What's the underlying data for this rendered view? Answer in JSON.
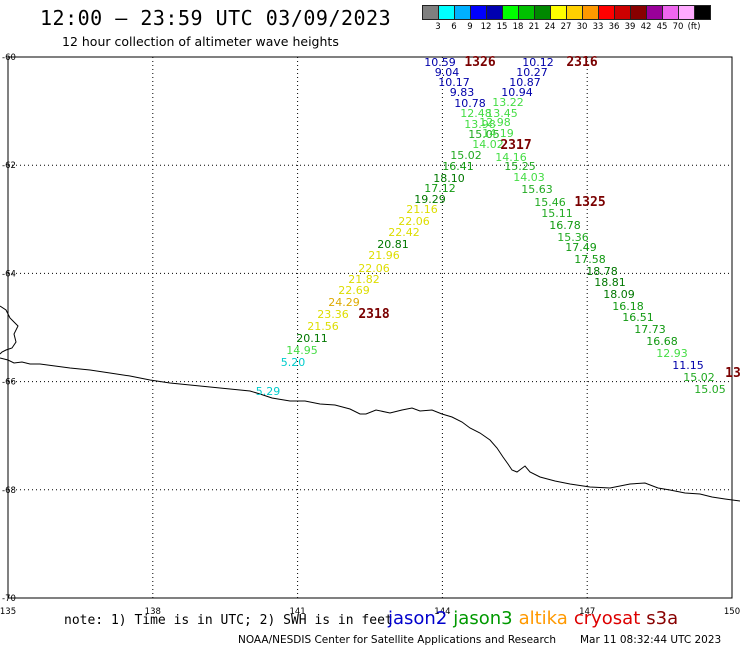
{
  "header": {
    "title": "12:00 – 23:59 UTC 03/09/2023",
    "subtitle": "12 hour collection of altimeter wave heights"
  },
  "color_scale": {
    "unit": "(ft)",
    "colors": [
      "#7f7f7f",
      "#00ffff",
      "#00b0ff",
      "#0000ff",
      "#0000b0",
      "#00ff00",
      "#00c000",
      "#008800",
      "#ffff00",
      "#ffd000",
      "#ff9900",
      "#ff0000",
      "#cc0000",
      "#880000",
      "#990099",
      "#ee66ee",
      "#ffaaff",
      "#000000"
    ],
    "labels": [
      "3",
      "6",
      "9",
      "12",
      "15",
      "18",
      "21",
      "24",
      "27",
      "30",
      "33",
      "36",
      "39",
      "42",
      "45",
      "70"
    ]
  },
  "map": {
    "lat_ticks": [
      "-60",
      "-62",
      "-64",
      "-66",
      "-68",
      "-70"
    ],
    "lon_ticks": [
      "135",
      "138",
      "141",
      "144",
      "147",
      "150"
    ],
    "lat_range": [
      -70,
      -60
    ],
    "lon_range": [
      135,
      150
    ]
  },
  "tracks": [
    {
      "time": "1326",
      "points": [
        {
          "v": "10.59",
          "c": "#0000aa"
        },
        {
          "v": "9.04",
          "c": "#0000aa"
        },
        {
          "v": "10.17",
          "c": "#0000aa"
        },
        {
          "v": "9.83",
          "c": "#0000aa"
        },
        {
          "v": "10.78",
          "c": "#0000aa"
        },
        {
          "v": "12.48",
          "c": "#44dd44"
        },
        {
          "v": "13.98",
          "c": "#44dd44"
        },
        {
          "v": "15.05",
          "c": "#22aa22"
        },
        {
          "v": "14.02",
          "c": "#44dd44"
        },
        {
          "v": "15.02",
          "c": "#22aa22"
        },
        {
          "v": "16.41",
          "c": "#119911"
        },
        {
          "v": "18.10",
          "c": "#007700"
        },
        {
          "v": "17.12",
          "c": "#119911"
        },
        {
          "v": "19.29",
          "c": "#007700"
        }
      ]
    },
    {
      "time": "2316",
      "points": [
        {
          "v": "10.12",
          "c": "#0000aa"
        },
        {
          "v": "10.27",
          "c": "#0000aa"
        },
        {
          "v": "10.87",
          "c": "#0000aa"
        },
        {
          "v": "10.94",
          "c": "#0000aa"
        },
        {
          "v": "13.22",
          "c": "#44dd44"
        },
        {
          "v": "13.45",
          "c": "#44dd44"
        },
        {
          "v": "12.98",
          "c": "#44dd44"
        },
        {
          "v": "14.19",
          "c": "#44dd44"
        },
        {
          "v": "14.16",
          "c": "#44dd44"
        },
        {
          "v": "15.25",
          "c": "#22aa22"
        },
        {
          "v": "14.03",
          "c": "#44dd44"
        },
        {
          "v": "15.63",
          "c": "#22aa22"
        }
      ]
    },
    {
      "time": "2317",
      "points": []
    },
    {
      "time": "2318",
      "points": [
        {
          "v": "21.16",
          "c": "#dddd00"
        },
        {
          "v": "22.06",
          "c": "#dddd00"
        },
        {
          "v": "22.42",
          "c": "#dddd00"
        },
        {
          "v": "20.81",
          "c": "#007700"
        },
        {
          "v": "21.96",
          "c": "#dddd00"
        },
        {
          "v": "22.06",
          "c": "#dddd00"
        },
        {
          "v": "21.82",
          "c": "#dddd00"
        },
        {
          "v": "22.69",
          "c": "#dddd00"
        },
        {
          "v": "24.29",
          "c": "#ddaa00"
        },
        {
          "v": "23.36",
          "c": "#dddd00"
        },
        {
          "v": "21.56",
          "c": "#dddd00"
        },
        {
          "v": "20.11",
          "c": "#007700"
        },
        {
          "v": "14.95",
          "c": "#44dd44"
        },
        {
          "v": "5.20",
          "c": "#00cccc"
        },
        {
          "v": "5.29",
          "c": "#00cccc"
        }
      ]
    },
    {
      "time": "1325",
      "points": [
        {
          "v": "15.46",
          "c": "#22aa22"
        },
        {
          "v": "15.11",
          "c": "#22aa22"
        },
        {
          "v": "16.78",
          "c": "#119911"
        },
        {
          "v": "15.36",
          "c": "#22aa22"
        },
        {
          "v": "17.49",
          "c": "#119911"
        },
        {
          "v": "17.58",
          "c": "#119911"
        },
        {
          "v": "18.78",
          "c": "#007700"
        },
        {
          "v": "18.81",
          "c": "#007700"
        },
        {
          "v": "18.09",
          "c": "#007700"
        },
        {
          "v": "16.18",
          "c": "#119911"
        },
        {
          "v": "16.51",
          "c": "#119911"
        },
        {
          "v": "17.73",
          "c": "#119911"
        },
        {
          "v": "16.68",
          "c": "#119911"
        },
        {
          "v": "12.93",
          "c": "#44dd44"
        },
        {
          "v": "11.15",
          "c": "#0000aa"
        },
        {
          "v": "15.02",
          "c": "#22aa22"
        },
        {
          "v": "15.05",
          "c": "#22aa22"
        }
      ]
    },
    {
      "time": "13",
      "points": []
    }
  ],
  "footer": {
    "note": "note: 1) Time is in UTC; 2) SWH is in feet",
    "satellites": [
      {
        "name": "jason2",
        "color": "#0000cc"
      },
      {
        "name": "jason3",
        "color": "#009900"
      },
      {
        "name": "altika",
        "color": "#ff9900"
      },
      {
        "name": "cryosat",
        "color": "#dd0000"
      },
      {
        "name": "s3a",
        "color": "#880000"
      }
    ],
    "credit": "NOAA/NESDIS Center for Satellite Applications and Research",
    "timestamp": "Mar 11 08:32:44 UTC 2023"
  }
}
